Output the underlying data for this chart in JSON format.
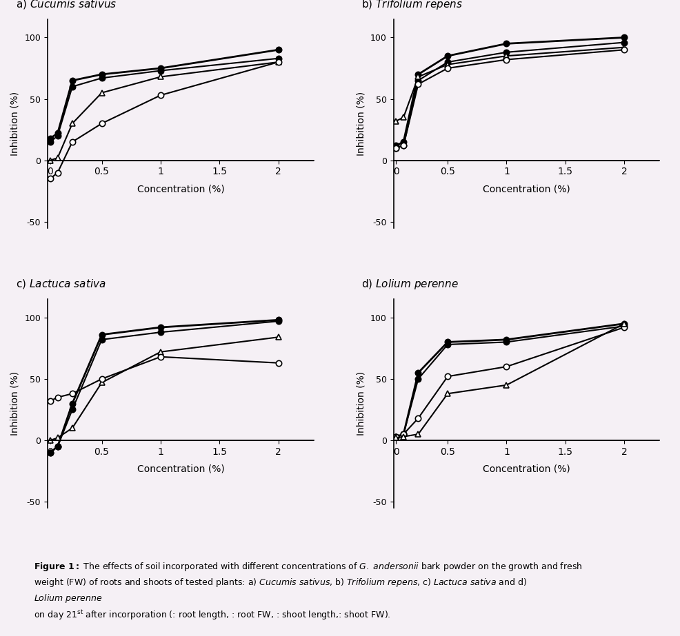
{
  "panels": [
    {
      "title_plain": "a) ",
      "title_italic": "Cucumis sativus",
      "series": [
        {
          "x": [
            0.0625,
            0.125,
            0.25,
            0.5,
            1.0,
            2.0
          ],
          "y": [
            18,
            22,
            65,
            70,
            75,
            90
          ],
          "marker": "o",
          "filled": true,
          "linewidth": 2.0
        },
        {
          "x": [
            0.0625,
            0.125,
            0.25,
            0.5,
            1.0,
            2.0
          ],
          "y": [
            15,
            20,
            60,
            67,
            73,
            83
          ],
          "marker": "o",
          "filled": true,
          "linewidth": 1.5
        },
        {
          "x": [
            0.0625,
            0.125,
            0.25,
            0.5,
            1.0,
            2.0
          ],
          "y": [
            0,
            2,
            30,
            55,
            68,
            80
          ],
          "marker": "^",
          "filled": false,
          "linewidth": 1.5
        },
        {
          "x": [
            0.0625,
            0.125,
            0.25,
            0.5,
            1.0,
            2.0
          ],
          "y": [
            -15,
            -10,
            15,
            30,
            53,
            80
          ],
          "marker": "o",
          "filled": false,
          "linewidth": 1.5
        }
      ]
    },
    {
      "title_plain": "b) ",
      "title_italic": "Trifolium repens",
      "series": [
        {
          "x": [
            0.0625,
            0.125,
            0.25,
            0.5,
            1.0,
            2.0
          ],
          "y": [
            12,
            15,
            70,
            85,
            95,
            100
          ],
          "marker": "o",
          "filled": true,
          "linewidth": 2.0
        },
        {
          "x": [
            0.0625,
            0.125,
            0.25,
            0.5,
            1.0,
            2.0
          ],
          "y": [
            10,
            12,
            65,
            80,
            88,
            96
          ],
          "marker": "o",
          "filled": true,
          "linewidth": 1.5
        },
        {
          "x": [
            0.0625,
            0.125,
            0.25,
            0.5,
            1.0,
            2.0
          ],
          "y": [
            32,
            35,
            68,
            78,
            85,
            92
          ],
          "marker": "^",
          "filled": false,
          "linewidth": 1.5
        },
        {
          "x": [
            0.0625,
            0.125,
            0.25,
            0.5,
            1.0,
            2.0
          ],
          "y": [
            10,
            12,
            62,
            75,
            82,
            90
          ],
          "marker": "o",
          "filled": false,
          "linewidth": 1.5
        }
      ]
    },
    {
      "title_plain": "c) ",
      "title_italic": "Lactuca sativa",
      "series": [
        {
          "x": [
            0.0625,
            0.125,
            0.25,
            0.5,
            1.0,
            2.0
          ],
          "y": [
            -10,
            -5,
            30,
            86,
            92,
            98
          ],
          "marker": "o",
          "filled": true,
          "linewidth": 2.0
        },
        {
          "x": [
            0.0625,
            0.125,
            0.25,
            0.5,
            1.0,
            2.0
          ],
          "y": [
            -10,
            -5,
            25,
            82,
            88,
            97
          ],
          "marker": "o",
          "filled": true,
          "linewidth": 1.5
        },
        {
          "x": [
            0.0625,
            0.125,
            0.25,
            0.5,
            1.0,
            2.0
          ],
          "y": [
            0,
            2,
            10,
            47,
            72,
            84
          ],
          "marker": "^",
          "filled": false,
          "linewidth": 1.5
        },
        {
          "x": [
            0.0625,
            0.125,
            0.25,
            0.5,
            1.0,
            2.0
          ],
          "y": [
            32,
            35,
            38,
            50,
            68,
            63
          ],
          "marker": "o",
          "filled": false,
          "linewidth": 1.5
        }
      ]
    },
    {
      "title_plain": "d) ",
      "title_italic": "Lolium perenne",
      "series": [
        {
          "x": [
            0.0625,
            0.125,
            0.25,
            0.5,
            1.0,
            2.0
          ],
          "y": [
            3,
            5,
            55,
            80,
            82,
            95
          ],
          "marker": "o",
          "filled": true,
          "linewidth": 2.0
        },
        {
          "x": [
            0.0625,
            0.125,
            0.25,
            0.5,
            1.0,
            2.0
          ],
          "y": [
            3,
            5,
            50,
            78,
            80,
            93
          ],
          "marker": "o",
          "filled": true,
          "linewidth": 1.5
        },
        {
          "x": [
            0.0625,
            0.125,
            0.25,
            0.5,
            1.0,
            2.0
          ],
          "y": [
            3,
            5,
            18,
            52,
            60,
            92
          ],
          "marker": "o",
          "filled": false,
          "linewidth": 1.5
        },
        {
          "x": [
            0.0625,
            0.125,
            0.25,
            0.5,
            1.0,
            2.0
          ],
          "y": [
            2,
            3,
            5,
            38,
            45,
            95
          ],
          "marker": "^",
          "filled": false,
          "linewidth": 1.5
        }
      ]
    }
  ],
  "xlabel": "Concentration (%)",
  "ylabel": "Inhibition (%)",
  "xlim": [
    0.04,
    2.5
  ],
  "ylim": [
    -55,
    115
  ],
  "yticks": [
    -50,
    0,
    50,
    100
  ],
  "xticks": [
    0.0625,
    0.5,
    1.0,
    1.5,
    2.0
  ],
  "xticklabels": [
    "0",
    "0.5",
    "1",
    "1.5",
    "2"
  ],
  "background_color": "#f5f0f5",
  "figure_caption": "Figure 1: The effects of soil incorporated with different concentrations of G. andersonii bark powder on the growth and fresh\nweight (FW) of roots and shoots of tested plants: a) Cucumis sativus, b) Trifolium repens, c) Lactuca sativa and d) Lolium perenne\non day 21st after incorporation (: root length, : root FW, : shoot length,: shoot FW)."
}
